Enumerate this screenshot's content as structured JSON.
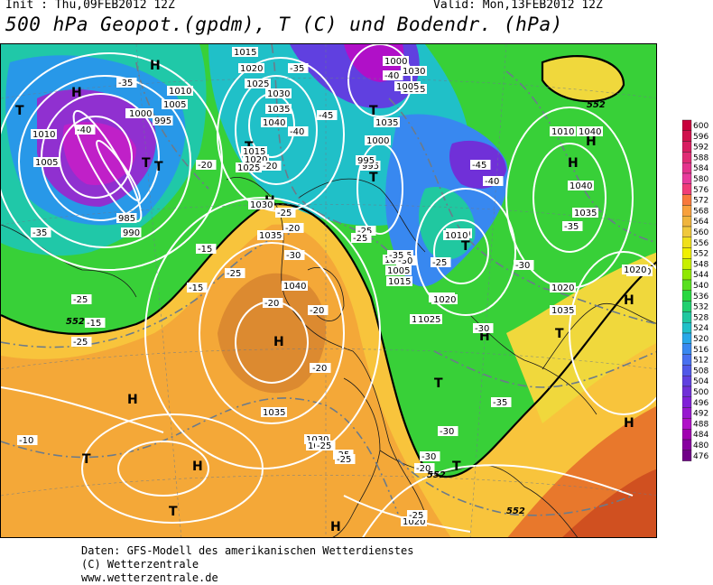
{
  "header": {
    "init": "Init : Thu,09FEB2012 12Z",
    "valid": "Valid: Mon,13FEB2012 12Z",
    "title": "500 hPa Geopot.(gpdm), T (C) und Bodendr. (hPa)"
  },
  "map": {
    "pressure_centers": [
      {
        "label": "H",
        "kind": "high"
      },
      {
        "label": "H",
        "kind": "high"
      },
      {
        "label": "T",
        "kind": "low"
      },
      {
        "label": "T",
        "kind": "low"
      },
      {
        "label": "T",
        "kind": "low"
      },
      {
        "label": "H",
        "kind": "high"
      },
      {
        "label": "H",
        "kind": "high"
      },
      {
        "label": "T",
        "kind": "low"
      },
      {
        "label": "T",
        "kind": "low"
      },
      {
        "label": "H",
        "kind": "high"
      },
      {
        "label": "T",
        "kind": "low"
      },
      {
        "label": "H",
        "kind": "high"
      },
      {
        "label": "T",
        "kind": "low"
      },
      {
        "label": "H",
        "kind": "high"
      },
      {
        "label": "H",
        "kind": "high"
      },
      {
        "label": "T",
        "kind": "low"
      },
      {
        "label": "H",
        "kind": "high"
      },
      {
        "label": "T",
        "kind": "low"
      },
      {
        "label": "H",
        "kind": "high"
      },
      {
        "label": "T",
        "kind": "low"
      },
      {
        "label": "H",
        "kind": "high"
      },
      {
        "label": "H",
        "kind": "high"
      },
      {
        "label": "T",
        "kind": "low"
      },
      {
        "label": "T",
        "kind": "low"
      }
    ],
    "isobar_labels": [
      "1015",
      "1020",
      "1025",
      "1030",
      "1035",
      "1040",
      "1010",
      "1005",
      "1000",
      "995",
      "985",
      "990",
      "1000",
      "1010",
      "1005",
      "1015",
      "1020",
      "1025",
      "1030",
      "1035",
      "1040",
      "995",
      "1000",
      "1005",
      "1010",
      "1015",
      "1020",
      "1025",
      "1030",
      "1035",
      "1040",
      "1020",
      "1030",
      "1035",
      "1010",
      "1000",
      "1005",
      "1020",
      "1025",
      "1020",
      "1035",
      "1040",
      "1010",
      "1025",
      "1030",
      "1020",
      "995",
      "1000",
      "1005",
      "1015",
      "1020",
      "1025",
      "1030",
      "1035"
    ],
    "temperature_labels": [
      "-35",
      "-40",
      "-45",
      "-40",
      "-35",
      "-30",
      "-25",
      "-20",
      "-15",
      "-10",
      "-25",
      "-20",
      "-30",
      "-35",
      "-40",
      "-45",
      "-40",
      "-35",
      "-30",
      "-25",
      "-20",
      "-15",
      "-25",
      "-20",
      "-25",
      "-30",
      "-25",
      "-20",
      "-30",
      "-25",
      "-35",
      "-20",
      "-25",
      "-25",
      "-15",
      "-10",
      "-20",
      "-25",
      "-30",
      "-35",
      "-20",
      "-25"
    ],
    "geopot_labels": [
      "552",
      "552",
      "552",
      "552"
    ]
  },
  "scale": {
    "values": [
      "600",
      "596",
      "592",
      "588",
      "584",
      "580",
      "576",
      "572",
      "568",
      "564",
      "560",
      "556",
      "552",
      "548",
      "544",
      "540",
      "536",
      "532",
      "528",
      "524",
      "520",
      "516",
      "512",
      "508",
      "504",
      "500",
      "496",
      "492",
      "488",
      "484",
      "480",
      "476"
    ],
    "colors": [
      "#c8003c",
      "#d0104c",
      "#d81c60",
      "#e02c74",
      "#e4348c",
      "#e83c9c",
      "#f03c78",
      "#f8783c",
      "#f8a03c",
      "#f0b43c",
      "#f0c83c",
      "#f0e01c",
      "#f0f000",
      "#c8f000",
      "#90e800",
      "#58e020",
      "#28d840",
      "#20d070",
      "#20c8a0",
      "#20c0c8",
      "#28a8e8",
      "#3888f0",
      "#4870f0",
      "#5058e8",
      "#6040e0",
      "#7030d8",
      "#8020d8",
      "#9818d0",
      "#b010c8",
      "#a000b0",
      "#8800a0",
      "#700088"
    ]
  },
  "footer": {
    "line1": "Daten: GFS-Modell des amerikanischen Wetterdienstes",
    "line2": "(C) Wetterzentrale",
    "line3": "www.wetterzentrale.de"
  }
}
